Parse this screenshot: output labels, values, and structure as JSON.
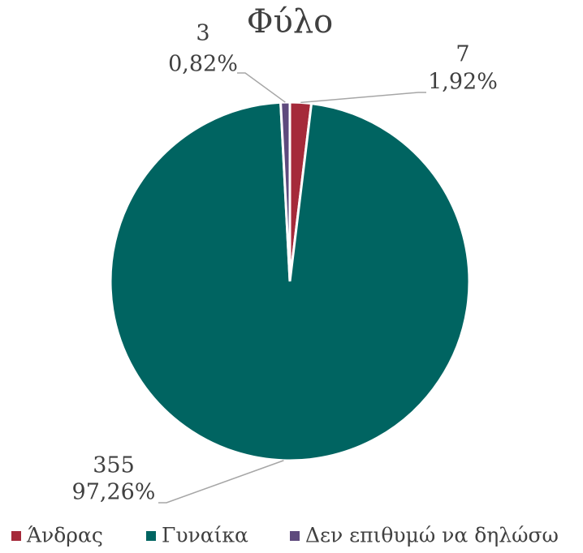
{
  "chart_data": {
    "type": "pie",
    "title": "Φύλο",
    "categories": [
      "Άνδρας",
      "Γυναίκα",
      "Δεν επιθυμώ να δηλώσω"
    ],
    "values": [
      7,
      355,
      3
    ],
    "percentages": [
      1.92,
      97.26,
      0.82
    ],
    "percentage_labels": [
      "1,92%",
      "97,26%",
      "0,82%"
    ],
    "colors": [
      "#a52a3a",
      "#006461",
      "#5e4a7d"
    ],
    "legend": "bottom"
  }
}
